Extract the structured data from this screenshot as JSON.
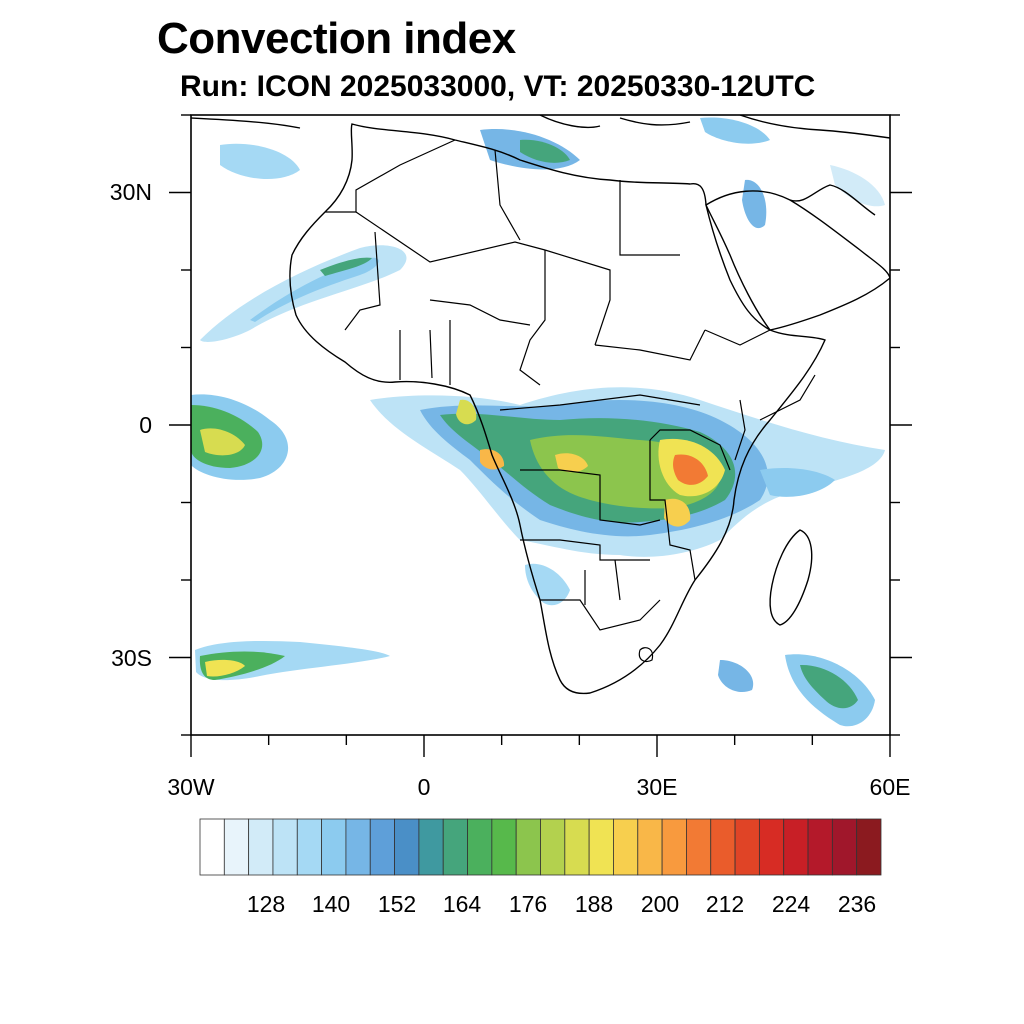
{
  "title": "Convection index",
  "subtitle": "Run: ICON 2025033000,  VT: 20250330-12UTC",
  "map": {
    "lon_range": [
      -30,
      60
    ],
    "lat_range": [
      -40,
      40
    ],
    "lon_ticks": [
      {
        "value": -30,
        "label": "30W"
      },
      {
        "value": 0,
        "label": "0"
      },
      {
        "value": 30,
        "label": "30E"
      },
      {
        "value": 60,
        "label": "60E"
      }
    ],
    "lat_ticks": [
      {
        "value": 30,
        "label": "30N"
      },
      {
        "value": 0,
        "label": "0"
      },
      {
        "value": -30,
        "label": "30S"
      }
    ]
  },
  "colorbar": {
    "colors": [
      "#ffffff",
      "#e8f4fb",
      "#d2ebf8",
      "#bde3f6",
      "#a5d9f4",
      "#8ccbef",
      "#76b6e6",
      "#5e9fd9",
      "#4a8fc7",
      "#3f99a0",
      "#45a57c",
      "#4bb05d",
      "#57b94b",
      "#8cc54d",
      "#b3d14e",
      "#d7dc50",
      "#f0e353",
      "#f7cf4e",
      "#f9b748",
      "#f89a3e",
      "#f27a34",
      "#ea5c2b",
      "#e04426",
      "#d72c24",
      "#c81f26",
      "#b4192a",
      "#a0172b",
      "#8b1a1f"
    ],
    "labels": [
      "128",
      "140",
      "152",
      "164",
      "176",
      "188",
      "200",
      "212",
      "224",
      "236"
    ]
  }
}
